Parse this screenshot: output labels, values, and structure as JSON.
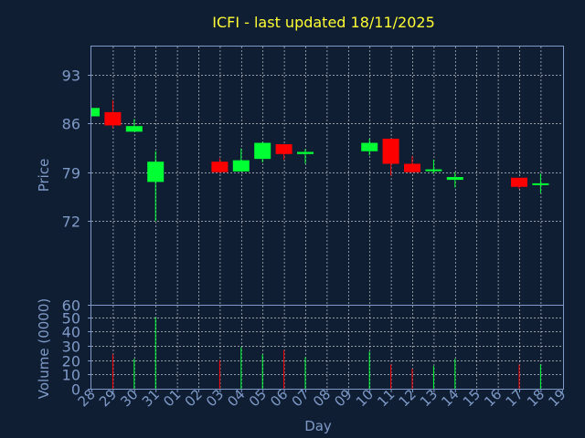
{
  "chart_data": {
    "type": "candlestick",
    "title": "ICFI - last updated 18/11/2025",
    "colors": {
      "background": "#0f1e33",
      "axis": "#7f9ac8",
      "grid": "#ffffff",
      "title": "#ffff33",
      "up": "#00ff33",
      "down": "#ff0000"
    },
    "price_panel": {
      "ylabel": "Price",
      "ylim": [
        60,
        97
      ],
      "yticks": [
        60,
        72,
        79,
        86,
        93
      ]
    },
    "volume_panel": {
      "ylabel": "Volume (0000)",
      "ylim": [
        0,
        58
      ],
      "yticks": [
        0,
        10,
        20,
        30,
        40,
        50
      ]
    },
    "xlabel": "Day",
    "x_ticks": [
      "28",
      "29",
      "30",
      "31",
      "01",
      "02",
      "03",
      "04",
      "05",
      "06",
      "07",
      "08",
      "09",
      "10",
      "11",
      "12",
      "13",
      "14",
      "15",
      "16",
      "17",
      "18",
      "19"
    ],
    "candles": [
      {
        "day": "28",
        "open": 87.0,
        "high": 88.2,
        "low": 87.0,
        "close": 88.2,
        "volume": 0
      },
      {
        "day": "29",
        "open": 87.6,
        "high": 89.3,
        "low": 85.3,
        "close": 85.7,
        "volume": 24
      },
      {
        "day": "30",
        "open": 84.8,
        "high": 86.6,
        "low": 84.8,
        "close": 85.6,
        "volume": 21
      },
      {
        "day": "31",
        "open": 77.6,
        "high": 82.0,
        "low": 72.0,
        "close": 80.5,
        "volume": 50
      },
      {
        "day": "03",
        "open": 80.5,
        "high": 81.0,
        "low": 78.9,
        "close": 79.0,
        "volume": 20
      },
      {
        "day": "04",
        "open": 79.1,
        "high": 82.4,
        "low": 79.1,
        "close": 80.7,
        "volume": 29
      },
      {
        "day": "05",
        "open": 80.9,
        "high": 83.3,
        "low": 80.4,
        "close": 83.2,
        "volume": 24
      },
      {
        "day": "06",
        "open": 83.0,
        "high": 83.0,
        "low": 80.8,
        "close": 81.6,
        "volume": 27
      },
      {
        "day": "07",
        "open": 81.6,
        "high": 82.3,
        "low": 80.2,
        "close": 81.9,
        "volume": 22
      },
      {
        "day": "10",
        "open": 82.0,
        "high": 83.8,
        "low": 81.4,
        "close": 83.2,
        "volume": 26
      },
      {
        "day": "11",
        "open": 83.8,
        "high": 83.8,
        "low": 78.5,
        "close": 80.2,
        "volume": 17
      },
      {
        "day": "12",
        "open": 80.2,
        "high": 81.3,
        "low": 78.9,
        "close": 79.0,
        "volume": 14
      },
      {
        "day": "13",
        "open": 79.2,
        "high": 80.8,
        "low": 78.8,
        "close": 79.4,
        "volume": 16
      },
      {
        "day": "14",
        "open": 77.9,
        "high": 79.0,
        "low": 76.8,
        "close": 78.3,
        "volume": 21
      },
      {
        "day": "17",
        "open": 78.2,
        "high": 78.2,
        "low": 76.6,
        "close": 76.9,
        "volume": 17
      },
      {
        "day": "18",
        "open": 77.3,
        "high": 78.8,
        "low": 76.0,
        "close": 77.4,
        "volume": 17
      }
    ]
  }
}
